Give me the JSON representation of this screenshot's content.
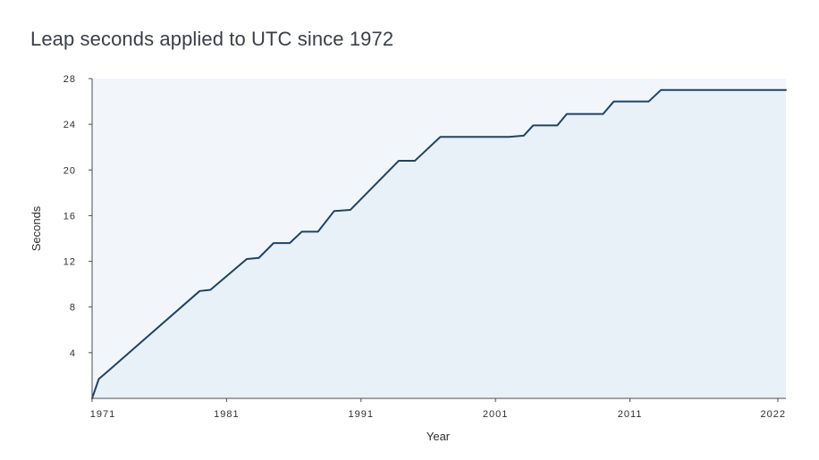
{
  "chart_data": {
    "type": "area",
    "title": "Leap seconds applied to UTC since 1972",
    "xlabel": "Year",
    "ylabel": "Seconds",
    "xlim": [
      1971,
      2022.6
    ],
    "ylim": [
      0,
      28
    ],
    "x_ticks": [
      1971,
      1981,
      1991,
      2001,
      2011,
      2022
    ],
    "y_ticks": [
      4,
      8,
      12,
      16,
      20,
      24,
      28
    ],
    "series": [
      {
        "x": [
          1971.0,
          1971.5,
          1972.0,
          1979.0,
          1979.8,
          1982.5,
          1983.4,
          1984.5,
          1985.7,
          1986.6,
          1987.8,
          1989.0,
          1990.2,
          1993.8,
          1995.0,
          1996.9,
          2002.0,
          2003.1,
          2003.8,
          2005.6,
          2006.3,
          2009.0,
          2009.8,
          2012.4,
          2013.3,
          2022.6
        ],
        "y": [
          0,
          1.7,
          2.2,
          9.4,
          9.5,
          12.2,
          12.3,
          13.6,
          13.6,
          14.6,
          14.6,
          16.4,
          16.5,
          20.8,
          20.8,
          22.9,
          22.9,
          23.0,
          23.9,
          23.9,
          24.9,
          24.9,
          26.0,
          26.0,
          27.0,
          27.0
        ]
      }
    ],
    "colors": {
      "line": "#1f4363",
      "area_fill": "#e8f0f8",
      "plot_bg": "#f2f6fb",
      "axis": "#4a4f55"
    },
    "grid": false,
    "legend": "none"
  }
}
